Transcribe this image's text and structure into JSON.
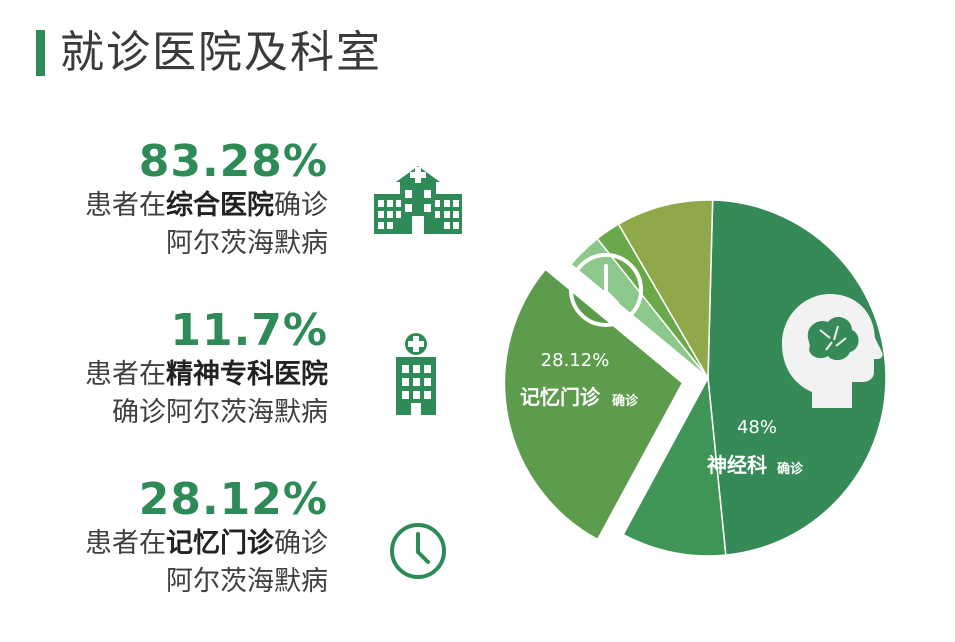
{
  "header": {
    "title": "就诊医院及科室"
  },
  "stats": [
    {
      "percent": "83.28%",
      "line1_prefix": "患者在",
      "line1_bold": "综合医院",
      "line1_suffix": "确诊",
      "line2": "阿尔茨海默病",
      "icon": "hospital-icon"
    },
    {
      "percent": "11.7%",
      "line1_prefix": "患者在",
      "line1_bold": "精神专科医院",
      "line1_suffix": "",
      "line2": "确诊阿尔茨海默病",
      "icon": "building-icon"
    },
    {
      "percent": "28.12%",
      "line1_prefix": "患者在",
      "line1_bold": "记忆门诊",
      "line1_suffix": "确诊",
      "line2": "阿尔茨海默病",
      "icon": "clock-icon"
    }
  ],
  "chart_data": {
    "type": "pie",
    "slices": [
      {
        "value": 48,
        "percent_label": "48%",
        "name_label": "神经科",
        "small_label": "确诊",
        "color": "#358a58",
        "icon": "brain-icon"
      },
      {
        "value": 9.5,
        "color": "#3f9556"
      },
      {
        "value": 28.12,
        "percent_label": "28.12%",
        "name_label": "记忆门诊",
        "small_label": "确诊",
        "color": "#5d9c4c",
        "icon": "clock-icon",
        "exploded": true
      },
      {
        "value": 3.3,
        "color": "#8cc88c"
      },
      {
        "value": 2.3,
        "color": "#6aa84a"
      },
      {
        "value": 8.8,
        "color": "#8fa84a"
      }
    ]
  },
  "colors": {
    "accent": "#2e8b57",
    "text": "#404040"
  }
}
